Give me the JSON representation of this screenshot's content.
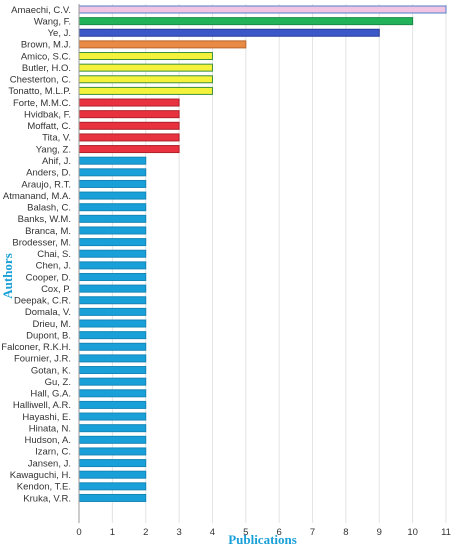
{
  "chart_data": {
    "type": "bar",
    "orientation": "horizontal",
    "xlabel": "Publications",
    "ylabel": "Authors",
    "xlim": [
      0,
      11
    ],
    "x_ticks": [
      0,
      1,
      2,
      3,
      4,
      5,
      6,
      7,
      8,
      9,
      10,
      11
    ],
    "grid": true,
    "categories": [
      "Amaechi, C.V.",
      "Wang, F.",
      "Ye, J.",
      "Brown, M.J.",
      "Amico, S.C.",
      "Butler, H.O.",
      "Chesterton, C.",
      "Tonatto, M.L.P.",
      "Forte, M.M.C.",
      "Hvidbak, F.",
      "Moffatt, C.",
      "Tita, V.",
      "Yang, Z.",
      "Ahif, J.",
      "Anders, D.",
      "Araujo, R.T.",
      "Atmanand, M.A.",
      "Balash, C.",
      "Banks, W.M.",
      "Branca, M.",
      "Brodesser, M.",
      "Chai, S.",
      "Chen, J.",
      "Cooper, D.",
      "Cox, P.",
      "Deepak, C.R.",
      "Domala, V.",
      "Drieu, M.",
      "Dupont, B.",
      "Falconer, R.K.H.",
      "Fournier, J.R.",
      "Gotan, K.",
      "Gu, Z.",
      "Hall, G.A.",
      "Halliwell, A.R.",
      "Hayashi, E.",
      "Hinata, N.",
      "Hudson, A.",
      "Izarn, C.",
      "Jansen, J.",
      "Kawaguchi, H.",
      "Kendon, T.E.",
      "Kruka, V.R."
    ],
    "values": [
      11,
      10,
      9,
      5,
      4,
      4,
      4,
      4,
      3,
      3,
      3,
      3,
      3,
      2,
      2,
      2,
      2,
      2,
      2,
      2,
      2,
      2,
      2,
      2,
      2,
      2,
      2,
      2,
      2,
      2,
      2,
      2,
      2,
      2,
      2,
      2,
      2,
      2,
      2,
      2,
      2,
      2,
      2
    ],
    "colors": {
      "11": {
        "fill": "#f2c4e3",
        "stroke": "#4f7fc8"
      },
      "10": {
        "fill": "#22b25a",
        "stroke": "#1a8a45"
      },
      "9": {
        "fill": "#3b57c8",
        "stroke": "#2a3f9a"
      },
      "5": {
        "fill": "#e98a44",
        "stroke": "#b9652a"
      },
      "4": {
        "fill": "#f4f23a",
        "stroke": "#3c8f3c"
      },
      "3": {
        "fill": "#e8323f",
        "stroke": "#b02029"
      },
      "2": {
        "fill": "#1aa0d8",
        "stroke": "#1486b8"
      }
    }
  }
}
